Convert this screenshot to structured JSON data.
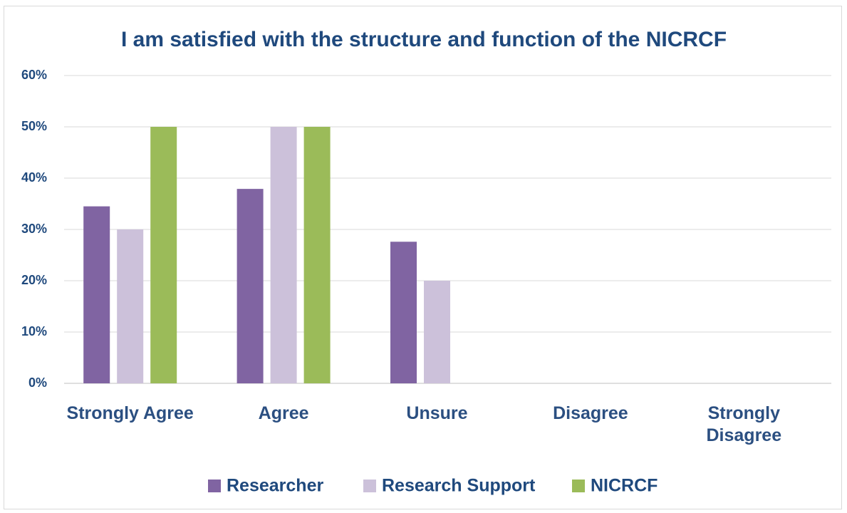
{
  "chart_data": {
    "type": "bar",
    "title": "I am satisfied with the structure and function of the NICRCF",
    "categories": [
      "Strongly Agree",
      "Agree",
      "Unsure",
      "Disagree",
      "Strongly Disagree"
    ],
    "series": [
      {
        "name": "Researcher",
        "color": "#8064a2",
        "values": [
          34.5,
          37.9,
          27.6,
          0,
          0
        ]
      },
      {
        "name": "Research Support",
        "color": "#ccc1da",
        "values": [
          30,
          50,
          20,
          0,
          0
        ]
      },
      {
        "name": "NICRCF",
        "color": "#9bbb59",
        "values": [
          50,
          50,
          0,
          0,
          0
        ]
      }
    ],
    "ylim": [
      0,
      60
    ],
    "yticks": [
      {
        "value": 0,
        "label": "0%"
      },
      {
        "value": 10,
        "label": "10%"
      },
      {
        "value": 20,
        "label": "20%"
      },
      {
        "value": 30,
        "label": "30%"
      },
      {
        "value": 40,
        "label": "40%"
      },
      {
        "value": 50,
        "label": "50%"
      },
      {
        "value": 60,
        "label": "60%"
      }
    ],
    "grid": true,
    "legend": "bottom"
  }
}
